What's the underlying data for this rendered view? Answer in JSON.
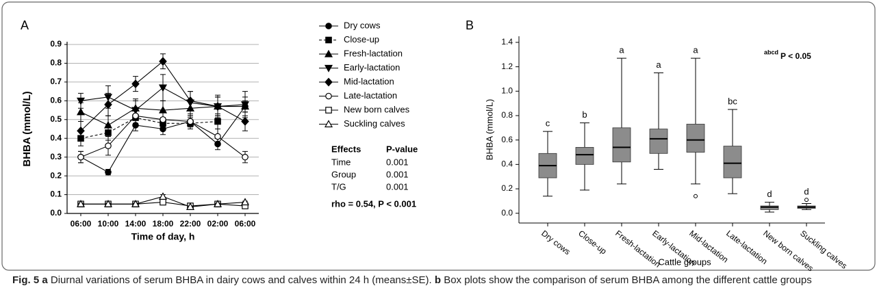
{
  "chart_data": [
    {
      "type": "line",
      "panel_label": "A",
      "ylabel": "BHBA (mmol/L)",
      "xlabel": "Time of day, h",
      "categories": [
        "06:00",
        "10:00",
        "14:00",
        "18:00",
        "22:00",
        "02:00",
        "06:00"
      ],
      "ylim": [
        0,
        0.9
      ],
      "yticks": [
        {
          "value": 0,
          "label": "0.0"
        },
        0.1,
        0.2,
        0.3,
        0.4,
        0.5,
        0.6,
        0.7,
        0.8,
        0.9
      ],
      "grid": true,
      "series": [
        {
          "name": "Dry cows",
          "color": "#000000",
          "marker": "circle",
          "marker_fill": "#000000",
          "dashed": false,
          "values": [
            0.3,
            0.22,
            0.47,
            0.45,
            0.49,
            0.37,
            0.57
          ],
          "errors": [
            0.03,
            0.015,
            0.03,
            0.03,
            0.03,
            0.03,
            0.03
          ]
        },
        {
          "name": "Close-up",
          "color": "#000000",
          "marker": "square",
          "marker_fill": "#000000",
          "dashed": true,
          "values": [
            0.4,
            0.43,
            0.51,
            0.48,
            0.48,
            0.49,
            null
          ],
          "errors": [
            0.04,
            0.04,
            0.04,
            0.03,
            0.03,
            0.04,
            null
          ]
        },
        {
          "name": "Fresh-lactation",
          "color": "#000000",
          "marker": "triangle-up",
          "marker_fill": "#000000",
          "dashed": false,
          "values": [
            0.54,
            0.47,
            0.56,
            0.55,
            0.56,
            0.57,
            0.57
          ],
          "errors": [
            0.05,
            0.05,
            0.05,
            0.05,
            0.04,
            0.05,
            0.05
          ]
        },
        {
          "name": "Early-lactation",
          "color": "#000000",
          "marker": "triangle-down",
          "marker_fill": "#000000",
          "dashed": false,
          "values": [
            0.6,
            0.62,
            0.55,
            0.67,
            0.59,
            0.57,
            0.58
          ],
          "errors": [
            0.04,
            0.06,
            0.05,
            0.07,
            0.06,
            0.06,
            0.07
          ]
        },
        {
          "name": "Mid-lactation",
          "color": "#000000",
          "marker": "diamond",
          "marker_fill": "#000000",
          "dashed": false,
          "values": [
            0.44,
            0.58,
            0.69,
            0.81,
            0.6,
            0.57,
            0.49
          ],
          "errors": [
            0.05,
            0.06,
            0.04,
            0.04,
            0.05,
            0.05,
            0.05
          ]
        },
        {
          "name": "Late-lactation",
          "color": "#000000",
          "marker": "circle",
          "marker_fill": "#ffffff",
          "dashed": false,
          "values": [
            0.3,
            0.36,
            0.52,
            0.5,
            0.49,
            0.41,
            0.3
          ],
          "errors": [
            0.03,
            0.05,
            0.04,
            0.04,
            0.04,
            0.04,
            0.03
          ]
        },
        {
          "name": "New born calves",
          "color": "#000000",
          "marker": "square",
          "marker_fill": "#ffffff",
          "dashed": false,
          "values": [
            0.05,
            0.05,
            0.05,
            0.06,
            0.04,
            0.05,
            0.04
          ],
          "errors": [
            0.005,
            0.005,
            0.005,
            0.01,
            0.005,
            0.005,
            0.005
          ]
        },
        {
          "name": "Suckling calves",
          "color": "#000000",
          "marker": "triangle-up",
          "marker_fill": "#ffffff",
          "dashed": false,
          "values": [
            0.05,
            0.05,
            0.05,
            0.09,
            0.035,
            0.05,
            0.06
          ],
          "errors": [
            0.005,
            0.005,
            0.005,
            0.01,
            0.005,
            0.005,
            0.005
          ]
        }
      ],
      "stats": {
        "header": [
          "Effects",
          "P-value"
        ],
        "rows": [
          [
            "Time",
            "0.001"
          ],
          [
            "Group",
            "0.001"
          ],
          [
            "T/G",
            "0.001"
          ]
        ]
      },
      "note": "rho = 0.54, P < 0.001"
    },
    {
      "type": "box",
      "panel_label": "B",
      "ylabel": "BHBA (mmol/L)",
      "xlabel": "Cattle groups",
      "categories": [
        "Dry cows",
        "Close-up",
        "Fresh-lactation",
        "Early-lactation",
        "Mid-lactation",
        "Late-lactation",
        "New born calves",
        "Suckling calves"
      ],
      "ylim": [
        -0.08,
        1.45
      ],
      "yticks": [
        {
          "value": 0,
          "label": "0.0"
        },
        0.2,
        0.4,
        0.6,
        0.8,
        {
          "value": 1,
          "label": "1.0"
        },
        1.2,
        1.4
      ],
      "grid": false,
      "color": "#8c8c8c",
      "boxes": [
        {
          "min": 0.14,
          "q1": 0.29,
          "median": 0.39,
          "q3": 0.49,
          "max": 0.67,
          "outliers": []
        },
        {
          "min": 0.19,
          "q1": 0.4,
          "median": 0.48,
          "q3": 0.54,
          "max": 0.74,
          "outliers": []
        },
        {
          "min": 0.24,
          "q1": 0.42,
          "median": 0.54,
          "q3": 0.7,
          "max": 1.27,
          "outliers": []
        },
        {
          "min": 0.36,
          "q1": 0.49,
          "median": 0.61,
          "q3": 0.69,
          "max": 1.15,
          "outliers": []
        },
        {
          "min": 0.24,
          "q1": 0.5,
          "median": 0.6,
          "q3": 0.73,
          "max": 1.27,
          "outliers": [
            0.14
          ]
        },
        {
          "min": 0.16,
          "q1": 0.29,
          "median": 0.41,
          "q3": 0.55,
          "max": 0.85,
          "outliers": []
        },
        {
          "min": 0.01,
          "q1": 0.03,
          "median": 0.05,
          "q3": 0.06,
          "max": 0.09,
          "outliers": []
        },
        {
          "min": 0.03,
          "q1": 0.04,
          "median": 0.05,
          "q3": 0.06,
          "max": 0.08,
          "outliers": [
            0.11
          ]
        }
      ],
      "letters": [
        "c",
        "b",
        "a",
        "a",
        "a",
        "bc",
        "d",
        "d"
      ],
      "note_sup": "abcd",
      "note": "P < 0.05"
    }
  ],
  "caption": {
    "label": "Fig. 5",
    "a_label": "a",
    "a_text": "Diurnal variations of serum BHBA in dairy cows and calves within 24 h (means±SE).",
    "b_label": "b",
    "b_text": "Box plots show the comparison of serum BHBA among the different cattle groups"
  }
}
